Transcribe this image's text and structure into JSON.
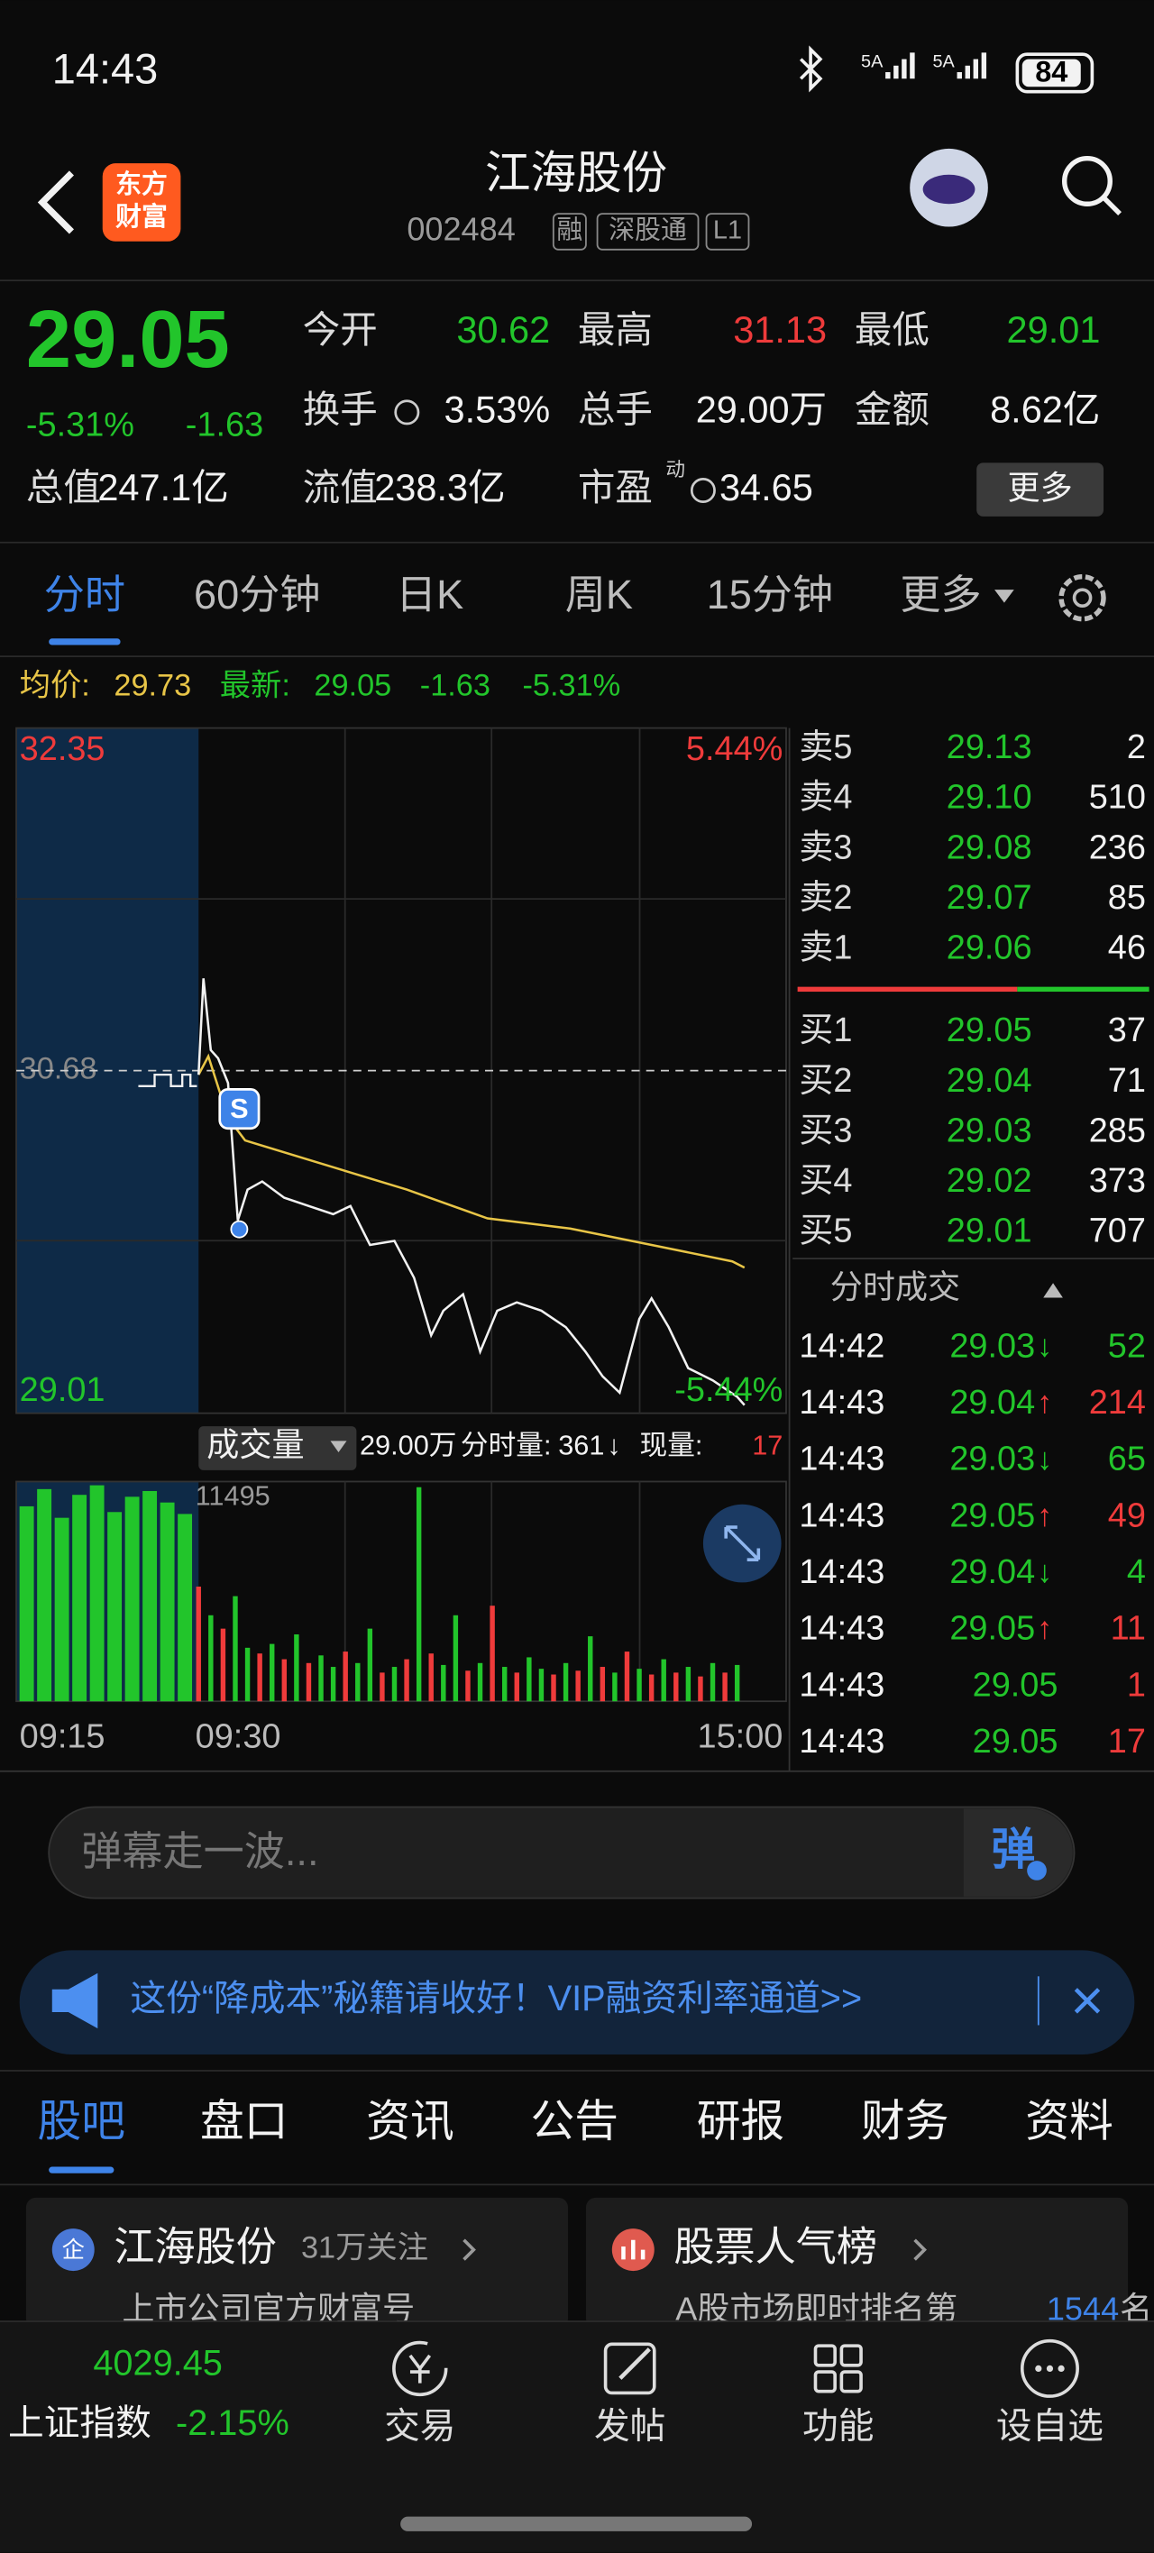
{
  "status_bar": {
    "time": "14:43",
    "signal_labels": [
      "5A",
      "5A"
    ],
    "battery": "84"
  },
  "header": {
    "logo": [
      "东方",
      "财富"
    ],
    "title": "江海股份",
    "code": "002484",
    "tags": [
      "融",
      "深股通",
      "L1"
    ]
  },
  "quote": {
    "price": "29.05",
    "change_percent": "-5.31%",
    "change": "-1.63",
    "fields": [
      {
        "label": "今开",
        "value": "30.62"
      },
      {
        "label": "最高",
        "value": "31.13"
      },
      {
        "label": "最低",
        "value": "29.01"
      },
      {
        "label": "换手",
        "value": "3.53%"
      },
      {
        "label": "总手",
        "value": "29.00万"
      },
      {
        "label": "金额",
        "value": "8.62亿"
      },
      {
        "label": "总值",
        "value": "247.1亿"
      },
      {
        "label": "流值",
        "value": "238.3亿"
      },
      {
        "label": "市盈",
        "value": "34.65"
      }
    ],
    "pe_tag": "动",
    "more": "更多"
  },
  "tabs": {
    "items": [
      "分时",
      "60分钟",
      "日K",
      "周K",
      "15分钟",
      "更多"
    ],
    "active": 0
  },
  "intraday": {
    "avg_label": "均价:",
    "avg": "29.73",
    "latest_label": "最新:",
    "latest": [
      "29.05",
      "-1.63",
      "-5.31%"
    ],
    "ylim": [
      29.01,
      32.35
    ],
    "pct_top": "5.44%",
    "pct_bottom": "-5.44%",
    "prev_close": 30.68,
    "xlim": [
      0,
      240
    ],
    "price": {
      "minutes": [
        0,
        2,
        5,
        8,
        12,
        16,
        20,
        26,
        35,
        45,
        55,
        62,
        70,
        80,
        88,
        95,
        100,
        108,
        115,
        122,
        130,
        140,
        150,
        158,
        165,
        172,
        180,
        185,
        192,
        200,
        210,
        220,
        223
      ],
      "values": [
        30.66,
        31.13,
        30.78,
        30.74,
        30.62,
        29.95,
        30.1,
        30.14,
        30.06,
        30.02,
        29.98,
        30.02,
        29.83,
        29.85,
        29.67,
        29.39,
        29.51,
        29.59,
        29.31,
        29.51,
        29.55,
        29.51,
        29.43,
        29.31,
        29.19,
        29.11,
        29.47,
        29.57,
        29.43,
        29.23,
        29.17,
        29.09,
        29.05
      ]
    },
    "average": {
      "minutes": [
        0,
        4,
        12,
        19,
        52,
        85,
        118,
        152,
        185,
        218,
        223
      ],
      "values": [
        30.66,
        30.75,
        30.45,
        30.34,
        30.22,
        30.1,
        29.96,
        29.91,
        29.83,
        29.75,
        29.72
      ]
    },
    "trade_marker": "S",
    "x_labels": [
      "09:15",
      "09:30",
      "15:00"
    ]
  },
  "volume": {
    "menu": "成交量",
    "total": "29.00万",
    "minute_label": "分时量:",
    "minute_volume": "361",
    "minute_dir": "↓",
    "current_label": "现量:",
    "current": "17",
    "ylim": [
      0,
      11495
    ],
    "auction_values": [
      10200,
      11100,
      9600,
      10800,
      11300,
      9900,
      10700,
      11000,
      10400,
      9800
    ],
    "minutes": [
      0,
      5,
      10,
      15,
      20,
      25,
      30,
      35,
      40,
      45,
      50,
      55,
      60,
      65,
      70,
      75,
      80,
      85,
      90,
      95,
      100,
      105,
      110,
      115,
      120,
      125,
      130,
      135,
      140,
      145,
      150,
      155,
      160,
      165,
      170,
      175,
      180,
      185,
      190,
      195,
      200,
      205,
      210,
      215,
      220
    ],
    "values": [
      6000,
      4500,
      3800,
      5500,
      2800,
      2500,
      3000,
      2200,
      3500,
      2000,
      2400,
      1800,
      2600,
      2000,
      3800,
      1500,
      1800,
      2200,
      11200,
      2500,
      1900,
      4500,
      1600,
      2000,
      5000,
      1800,
      1500,
      2300,
      1700,
      1400,
      2000,
      1600,
      3400,
      1800,
      1500,
      2600,
      1700,
      1400,
      2200,
      1500,
      1800,
      1300,
      2000,
      1500,
      1900
    ],
    "colors": [
      "#ef3b3b",
      "#22c52b",
      "#ef3b3b",
      "#22c52b",
      "#22c52b",
      "#ef3b3b",
      "#22c52b",
      "#ef3b3b",
      "#22c52b",
      "#ef3b3b",
      "#22c52b",
      "#22c52b",
      "#ef3b3b",
      "#22c52b",
      "#22c52b",
      "#ef3b3b",
      "#22c52b",
      "#ef3b3b",
      "#22c52b",
      "#ef3b3b",
      "#22c52b",
      "#22c52b",
      "#ef3b3b",
      "#22c52b",
      "#ef3b3b",
      "#22c52b",
      "#ef3b3b",
      "#22c52b",
      "#22c52b",
      "#ef3b3b",
      "#22c52b",
      "#ef3b3b",
      "#22c52b",
      "#ef3b3b",
      "#22c52b",
      "#ef3b3b",
      "#22c52b",
      "#ef3b3b",
      "#22c52b",
      "#ef3b3b",
      "#22c52b",
      "#ef3b3b",
      "#22c52b",
      "#ef3b3b",
      "#22c52b"
    ]
  },
  "order_book": {
    "asks": [
      {
        "label": "卖5",
        "price": "29.13",
        "volume": "2"
      },
      {
        "label": "卖4",
        "price": "29.10",
        "volume": "510"
      },
      {
        "label": "卖3",
        "price": "29.08",
        "volume": "236"
      },
      {
        "label": "卖2",
        "price": "29.07",
        "volume": "85"
      },
      {
        "label": "卖1",
        "price": "29.06",
        "volume": "46"
      }
    ],
    "bids": [
      {
        "label": "买1",
        "price": "29.05",
        "volume": "37"
      },
      {
        "label": "买2",
        "price": "29.04",
        "volume": "71"
      },
      {
        "label": "买3",
        "price": "29.03",
        "volume": "285"
      },
      {
        "label": "买4",
        "price": "29.02",
        "volume": "373"
      },
      {
        "label": "买5",
        "price": "29.01",
        "volume": "707"
      }
    ]
  },
  "trades": {
    "title": "分时成交",
    "rows": [
      {
        "time": "14:42",
        "price": "29.03",
        "dir": "↓",
        "volume": "52"
      },
      {
        "time": "14:43",
        "price": "29.04",
        "dir": "↑",
        "volume": "214"
      },
      {
        "time": "14:43",
        "price": "29.03",
        "dir": "↓",
        "volume": "65"
      },
      {
        "time": "14:43",
        "price": "29.05",
        "dir": "↑",
        "volume": "49"
      },
      {
        "time": "14:43",
        "price": "29.04",
        "dir": "↓",
        "volume": "4"
      },
      {
        "time": "14:43",
        "price": "29.05",
        "dir": "↑",
        "volume": "11"
      },
      {
        "time": "14:43",
        "price": "29.05",
        "volume": "1"
      },
      {
        "time": "14:43",
        "price": "29.05",
        "volume": "17"
      }
    ]
  },
  "danmaku": {
    "placeholder": "弹幕走一波...",
    "button": "弹"
  },
  "banner": {
    "text": "这份“降成本”秘籍请收好！VIP融资利率通道>>"
  },
  "section_tabs": {
    "items": [
      "股吧",
      "盘口",
      "资讯",
      "公告",
      "研报",
      "财务",
      "资料"
    ],
    "active": 0
  },
  "cards": [
    {
      "icon": "企",
      "title": "江海股份",
      "meta": "31万关注",
      "subtitle": "上市公司官方财富号"
    },
    {
      "title": "股票人气榜",
      "subtitle": "A股市场即时排名第",
      "rank": "1544",
      "suffix": "名"
    }
  ],
  "bottom_nav": {
    "index_value": "4029.45",
    "index_name": "上证指数",
    "index_change": "-2.15%",
    "items": [
      "交易",
      "发帖",
      "功能",
      "设自选"
    ]
  }
}
